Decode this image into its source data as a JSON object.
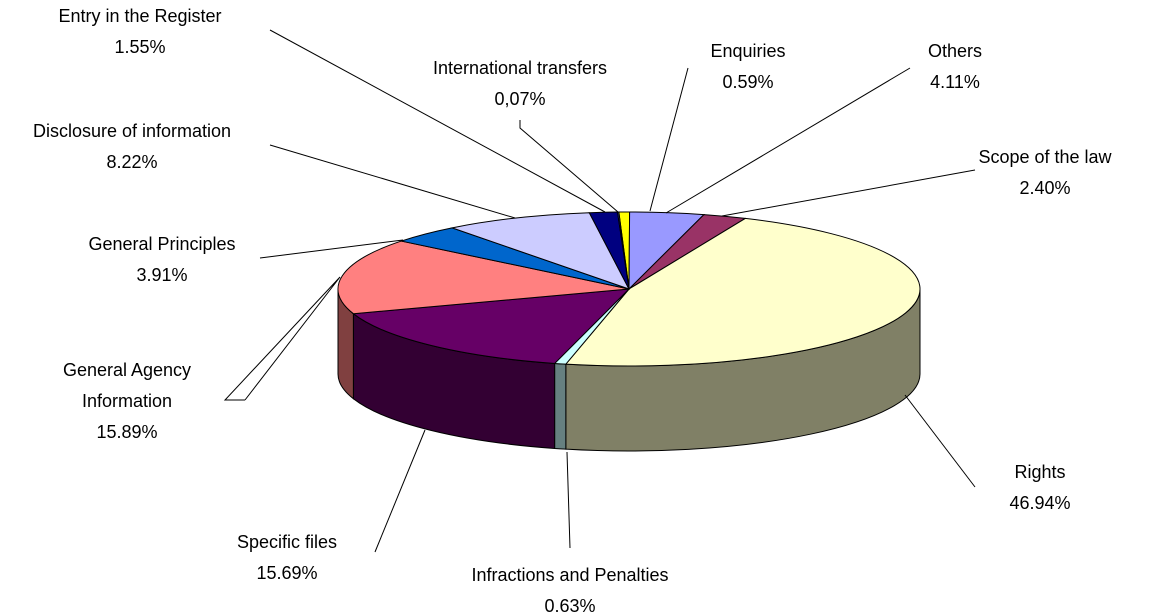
{
  "chart_data": {
    "type": "pie3d",
    "categories": [
      "Enquiries",
      "Others",
      "Scope of the law",
      "Rights",
      "Infractions and Penalties",
      "Specific files",
      "General Agency Information",
      "General Principles",
      "Disclosure of information",
      "Entry in the Register",
      "International transfers"
    ],
    "values": [
      0.59,
      4.11,
      2.4,
      46.94,
      0.63,
      15.69,
      15.89,
      3.91,
      8.22,
      1.55,
      0.07
    ],
    "value_labels": [
      "0.59%",
      "4.11%",
      "2.40%",
      "46.94%",
      "0.63%",
      "15.69%",
      "15.89%",
      "3.91%",
      "8.22%",
      "1.55%",
      "0,07%"
    ],
    "colors": [
      "#ffff00",
      "#9999ff",
      "#993366",
      "#ffffcc",
      "#ccffff",
      "#660066",
      "#ff8080",
      "#0066cc",
      "#ccccff",
      "#000080",
      "#3366ff"
    ]
  }
}
